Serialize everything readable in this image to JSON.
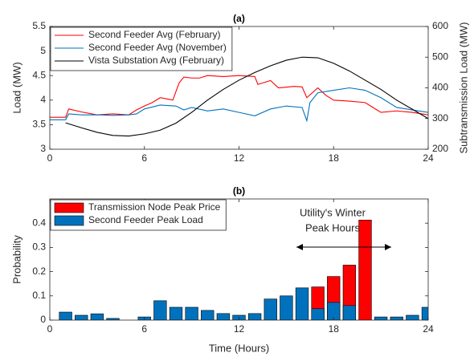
{
  "chart_data": [
    {
      "type": "line",
      "title": "(a)",
      "ylabel": "Load (MW)",
      "y2label": "Subtransmission Load (MW)",
      "xlim": [
        0,
        24
      ],
      "xticks": [
        0,
        6,
        12,
        18,
        24
      ],
      "ylim": [
        3,
        5.5
      ],
      "yticks": [
        3,
        3.5,
        4,
        4.5,
        5,
        5.5
      ],
      "y2lim": [
        200,
        600
      ],
      "y2ticks": [
        200,
        300,
        400,
        500,
        600
      ],
      "legend": "upper left",
      "series": [
        {
          "name": "Second Feeder Avg (February)",
          "color": "#ff0000",
          "x": [
            0,
            1,
            1.2,
            2,
            3,
            4,
            5,
            5.5,
            6,
            6.5,
            7,
            7.5,
            7.8,
            8.2,
            8.5,
            9,
            9.5,
            10,
            11,
            12,
            13,
            13.2,
            14,
            14.5,
            15.5,
            16,
            16.3,
            17,
            17.5,
            18,
            19,
            20,
            20.5,
            21,
            22,
            23,
            24
          ],
          "values": [
            3.65,
            3.65,
            3.82,
            3.76,
            3.7,
            3.72,
            3.7,
            3.8,
            3.88,
            3.95,
            4.05,
            4.02,
            4.0,
            4.35,
            4.47,
            4.45,
            4.45,
            4.5,
            4.48,
            4.5,
            4.48,
            4.32,
            4.4,
            4.25,
            4.28,
            4.27,
            4.05,
            4.25,
            4.1,
            4.0,
            3.98,
            3.95,
            3.85,
            3.75,
            3.78,
            3.75,
            3.7
          ]
        },
        {
          "name": "Second Feeder Avg (November)",
          "color": "#0072bd",
          "x": [
            0,
            1,
            1.2,
            2,
            3,
            4,
            5,
            5.5,
            6,
            7,
            8,
            8.5,
            9,
            10,
            11,
            12,
            13,
            14,
            15,
            16,
            16.3,
            16.5,
            17,
            18,
            19,
            20,
            21,
            22,
            23,
            24
          ],
          "values": [
            3.6,
            3.6,
            3.72,
            3.7,
            3.7,
            3.69,
            3.7,
            3.72,
            3.82,
            3.9,
            3.88,
            3.8,
            3.85,
            3.78,
            3.82,
            3.75,
            3.68,
            3.82,
            3.88,
            3.85,
            3.58,
            3.95,
            4.15,
            4.2,
            4.25,
            4.2,
            4.05,
            3.85,
            3.8,
            3.75
          ]
        },
        {
          "name": "Vista Substation Avg (February)",
          "color": "#000000",
          "axis": "y2",
          "x": [
            1,
            2,
            3,
            4,
            5,
            6,
            7,
            8,
            9,
            10,
            11,
            12,
            13,
            14,
            15,
            16,
            17,
            18,
            19,
            20,
            21,
            22,
            23,
            24
          ],
          "values": [
            286,
            270,
            255,
            245,
            243,
            250,
            262,
            285,
            320,
            360,
            395,
            425,
            450,
            472,
            490,
            500,
            498,
            480,
            455,
            425,
            395,
            360,
            330,
            300
          ]
        }
      ]
    },
    {
      "type": "bar",
      "title": "(b)",
      "xlabel": "Time (Hours)",
      "ylabel": "Probability",
      "xlim": [
        0,
        24
      ],
      "xticks": [
        0,
        6,
        12,
        18,
        24
      ],
      "ylim": [
        0,
        0.5
      ],
      "yticks": [
        0,
        0.1,
        0.2,
        0.3,
        0.4
      ],
      "legend": "upper left",
      "annotations": [
        "Utility's Winter",
        "Peak Hours"
      ],
      "x": [
        1,
        2,
        3,
        4,
        5,
        6,
        7,
        8,
        9,
        10,
        11,
        12,
        13,
        14,
        15,
        16,
        17,
        18,
        19,
        20,
        21,
        22,
        23,
        24
      ],
      "series": [
        {
          "name": "Transmission Node Peak Price",
          "color": "#ff0000",
          "values": [
            0,
            0,
            0,
            0,
            0,
            0,
            0,
            0,
            0,
            0,
            0,
            0,
            0,
            0,
            0,
            0,
            0.137,
            0.18,
            0.227,
            0.413,
            0,
            0,
            0,
            0
          ]
        },
        {
          "name": "Second Feeder Peak Load",
          "color": "#0072bd",
          "values": [
            0.033,
            0.02,
            0.026,
            0.007,
            0,
            0.013,
            0.08,
            0.053,
            0.053,
            0.04,
            0.027,
            0.02,
            0.027,
            0.087,
            0.1,
            0.133,
            0.047,
            0.073,
            0.06,
            0,
            0.013,
            0.013,
            0.02,
            0.053
          ]
        }
      ]
    }
  ]
}
